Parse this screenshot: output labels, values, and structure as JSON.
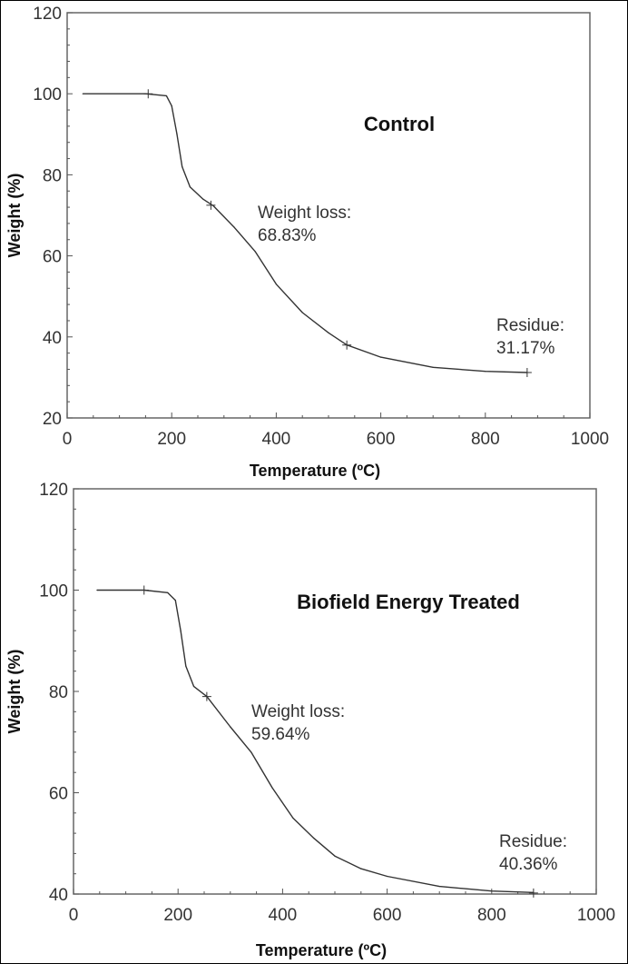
{
  "chart_data": [
    {
      "type": "line",
      "title": "Control",
      "xlabel": "Temperature (ºC)",
      "ylabel": "Weight (%)",
      "xlim": [
        0,
        1000
      ],
      "ylim": [
        20,
        120
      ],
      "xticks": [
        0,
        200,
        400,
        600,
        800,
        1000
      ],
      "yticks": [
        20,
        40,
        60,
        80,
        100,
        120
      ],
      "grid": false,
      "series": [
        {
          "x": [
            30,
            150,
            190,
            200,
            210,
            220,
            235,
            260,
            280,
            320,
            360,
            400,
            450,
            500,
            535,
            600,
            700,
            800,
            880
          ],
          "y": [
            100,
            100,
            99.5,
            97,
            90,
            82,
            77,
            74,
            72.3,
            67,
            61,
            53,
            46,
            41,
            38,
            35,
            32.5,
            31.5,
            31.2
          ]
        }
      ],
      "markers": [
        {
          "x": 155,
          "y": 100
        },
        {
          "x": 275,
          "y": 72.5
        },
        {
          "x": 535,
          "y": 38
        },
        {
          "x": 880,
          "y": 31.2
        }
      ],
      "annotations": [
        {
          "label": "Weight loss:",
          "value": "68.83%"
        },
        {
          "label": "Residue:",
          "value": "31.17%"
        }
      ]
    },
    {
      "type": "line",
      "title": "Biofield Energy Treated",
      "xlabel": "Temperature (ºC)",
      "ylabel": "Weight (%)",
      "xlim": [
        0,
        1000
      ],
      "ylim": [
        40,
        120
      ],
      "xticks": [
        0,
        200,
        400,
        600,
        800,
        1000
      ],
      "yticks": [
        40,
        60,
        80,
        100,
        120
      ],
      "grid": false,
      "series": [
        {
          "x": [
            45,
            135,
            180,
            195,
            205,
            215,
            230,
            255,
            300,
            340,
            380,
            420,
            460,
            500,
            550,
            600,
            700,
            800,
            880
          ],
          "y": [
            100,
            100,
            99.5,
            98,
            92,
            85,
            81,
            79,
            73,
            68,
            61,
            55,
            51,
            47.5,
            45,
            43.5,
            41.5,
            40.6,
            40.3
          ]
        }
      ],
      "markers": [
        {
          "x": 135,
          "y": 100
        },
        {
          "x": 255,
          "y": 79
        },
        {
          "x": 880,
          "y": 40.2
        }
      ],
      "annotations": [
        {
          "label": "Weight loss:",
          "value": "59.64%"
        },
        {
          "label": "Residue:",
          "value": "40.36%"
        }
      ]
    }
  ]
}
